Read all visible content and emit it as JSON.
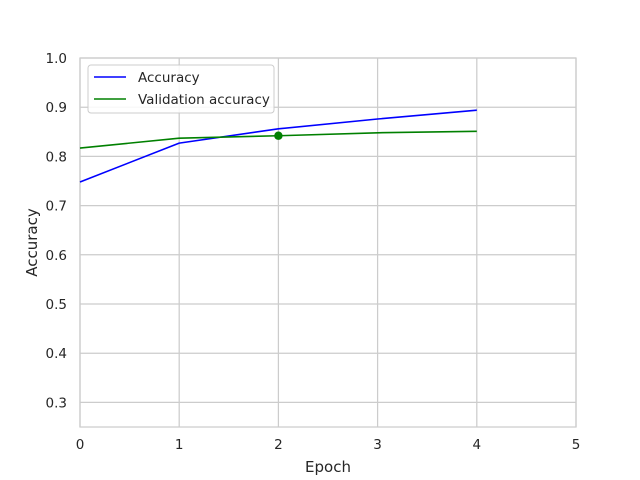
{
  "chart_data": {
    "type": "line",
    "xlabel": "Epoch",
    "ylabel": "Accuracy",
    "xlim": [
      0,
      5
    ],
    "ylim": [
      0.25,
      1.0
    ],
    "xticks": [
      "0",
      "1",
      "2",
      "3",
      "4",
      "5"
    ],
    "yticks": [
      "0.3",
      "0.4",
      "0.5",
      "0.6",
      "0.7",
      "0.8",
      "0.9",
      "1.0"
    ],
    "grid": true,
    "legend_position": "top-left",
    "series": [
      {
        "name": "Accuracy",
        "color": "#0000ff",
        "x": [
          0,
          1,
          2,
          3,
          4
        ],
        "values": [
          0.748,
          0.827,
          0.856,
          0.876,
          0.894
        ]
      },
      {
        "name": "Validation accuracy",
        "color": "#008000",
        "x": [
          0,
          1,
          2,
          3,
          4
        ],
        "values": [
          0.817,
          0.837,
          0.842,
          0.848,
          0.851
        ]
      }
    ],
    "marker": {
      "series": "Validation accuracy",
      "x": 2,
      "y": 0.842,
      "color": "#008000"
    }
  }
}
